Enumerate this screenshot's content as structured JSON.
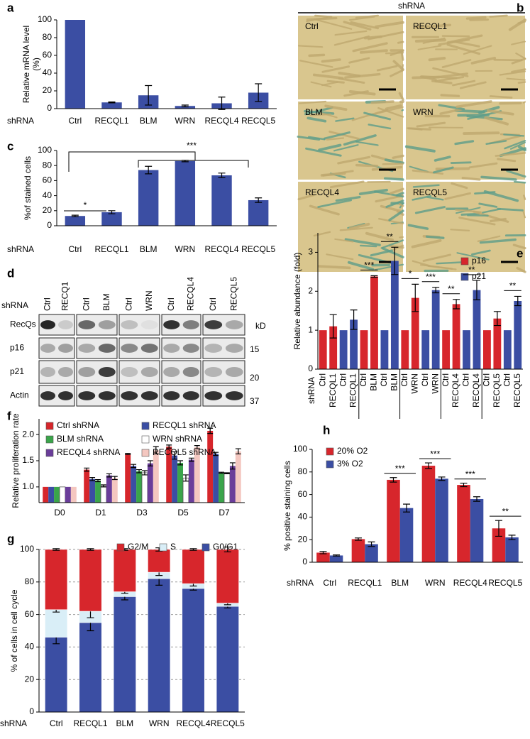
{
  "figure_b": {
    "panel_label": "b",
    "header": "shRNA",
    "images": [
      "Ctrl",
      "RECQL1",
      "BLM",
      "WRN",
      "RECQL4",
      "RECQL5"
    ]
  },
  "figure_d": {
    "panel_label": "d",
    "row_title": "shRNA",
    "lanes": [
      "Ctrl",
      "RECQ1",
      "Ctrl",
      "BLM",
      "Ctrl",
      "WRN",
      "Ctrl",
      "RECQL4",
      "Ctrl",
      "RECQL5"
    ],
    "rows": [
      "RecQs",
      "p16",
      "p21",
      "Actin"
    ],
    "size_header": "kD",
    "sizes": [
      15,
      20,
      37
    ]
  },
  "chart_data": [
    {
      "type": "bar",
      "panel_label": "a",
      "y_label": [
        "Relative mRNA level",
        "(%)"
      ],
      "row_title": "shRNA",
      "categories": [
        "Ctrl",
        "RECQL1",
        "BLM",
        "WRN",
        "RECQL4",
        "RECQL5"
      ],
      "values": [
        100,
        7,
        15,
        3,
        6,
        18
      ],
      "errors": [
        0,
        0.5,
        11,
        1,
        7,
        10
      ],
      "color": "#3b4ea3",
      "ylim": [
        0,
        100
      ],
      "yticks": [
        0,
        20,
        40,
        60,
        80,
        100
      ]
    },
    {
      "type": "bar",
      "panel_label": "c",
      "y_label": "%of stained cells",
      "row_title": "shRNA",
      "categories": [
        "Ctrl",
        "RECQL1",
        "BLM",
        "WRN",
        "RECQL4",
        "RECQL5"
      ],
      "values": [
        13,
        18,
        74,
        86,
        67,
        34
      ],
      "errors": [
        1,
        2,
        5,
        1,
        3,
        3
      ],
      "color": "#3b4ea3",
      "annotations": [
        "***",
        "*"
      ],
      "ylim": [
        0,
        100
      ],
      "yticks": [
        0,
        20,
        40,
        60,
        80,
        100
      ]
    },
    {
      "type": "bar",
      "panel_label": "e",
      "y_label": "Relative abundance (fold)",
      "row_title": "shRNA",
      "categories": [
        "Ctrl",
        "RECQL1",
        "Ctrl",
        "RECQL1",
        "Ctrl",
        "BLM",
        "Ctrl",
        "BLM",
        "Ctrl",
        "WRN",
        "Ctrl",
        "WRN",
        "Ctrl",
        "RECQL4",
        "Ctrl",
        "RECQL4",
        "Ctrl",
        "RECQL5",
        "Ctrl",
        "RECQL5"
      ],
      "series": [
        {
          "name": "p16",
          "color": "#d7262c",
          "values": [
            1,
            1.1,
            null,
            null,
            1,
            2.38,
            null,
            null,
            1,
            1.83,
            null,
            null,
            1,
            1.67,
            null,
            null,
            1,
            1.3,
            null,
            null
          ],
          "errors": [
            null,
            0.3,
            null,
            null,
            null,
            0.02,
            null,
            null,
            null,
            0.35,
            null,
            null,
            null,
            0.12,
            null,
            null,
            null,
            0.18,
            null,
            null
          ]
        },
        {
          "name": "p21",
          "color": "#3b4ea3",
          "values": [
            null,
            null,
            1,
            1.27,
            null,
            null,
            1,
            2.78,
            null,
            null,
            1,
            2.03,
            null,
            null,
            1,
            2.03,
            null,
            null,
            1,
            1.75
          ],
          "errors": [
            null,
            null,
            null,
            0.25,
            null,
            null,
            null,
            0.35,
            null,
            null,
            null,
            0.07,
            null,
            null,
            null,
            0.25,
            null,
            null,
            null,
            0.12
          ]
        }
      ],
      "annotations": [
        "***",
        "**",
        "*",
        "***",
        "**",
        "**",
        "**"
      ],
      "ylim": [
        0,
        3.5
      ],
      "yticks": [
        0,
        1,
        2,
        3
      ]
    },
    {
      "type": "bar",
      "panel_label": "f",
      "y_label": "Relative proliferation rate",
      "categories": [
        "D0",
        "D1",
        "D3",
        "D5",
        "D7"
      ],
      "series": [
        {
          "name": "Ctrl shRNA",
          "color": "#d6262b",
          "values": [
            1,
            1.33,
            1.63,
            1.77,
            2.07
          ],
          "errors": [
            0,
            0.03,
            0.01,
            0.03,
            0.05
          ]
        },
        {
          "name": "RECQL1 shRNA",
          "color": "#3b4ea3",
          "values": [
            1,
            1.15,
            1.4,
            1.6,
            1.63
          ],
          "errors": [
            0,
            0.03,
            0.03,
            0.07,
            0.03
          ]
        },
        {
          "name": "BLM shRNA",
          "color": "#3aa54a",
          "values": [
            1,
            1.12,
            1.3,
            1.46,
            1.27
          ],
          "errors": [
            0,
            0.02,
            0.03,
            0.04,
            0.01
          ]
        },
        {
          "name": "WRN shRNA",
          "color": "#ffffff",
          "values": [
            1,
            1.02,
            1.27,
            1.17,
            1.26
          ],
          "errors": [
            0,
            0.02,
            0.04,
            0.06,
            0.01
          ]
        },
        {
          "name": "RECQL4 shRNA",
          "color": "#6a3d9a",
          "values": [
            1,
            1.22,
            1.45,
            1.52,
            1.4
          ],
          "errors": [
            0,
            0.03,
            0.05,
            0.03,
            0.06
          ]
        },
        {
          "name": "RECQL5 shRNA",
          "color": "#f4c7c0",
          "values": [
            1,
            1.17,
            1.7,
            1.76,
            1.68
          ],
          "errors": [
            0,
            0.03,
            0.07,
            0.03,
            0.05
          ]
        }
      ],
      "ylim": [
        0.7,
        2.3
      ],
      "yticks": [
        {
          "value": 1,
          "label": "1.0"
        },
        1.5,
        {
          "value": 2,
          "label": "2.0"
        }
      ]
    },
    {
      "type": "stacked_bar",
      "panel_label": "g",
      "y_label": "% of cells in cell cycle",
      "row_title": "shRNA",
      "categories": [
        "Ctrl",
        "RECQL1",
        "BLM",
        "WRN",
        "RECQL4",
        "RECQL5"
      ],
      "series": [
        {
          "name": "G2/M",
          "color": "#d7262c",
          "values": [
            37,
            38,
            26,
            14,
            21,
            33
          ],
          "errors": [
            0.5,
            0.5,
            0.5,
            1,
            0.5,
            1.5
          ]
        },
        {
          "name": "S",
          "color": "#d9eef7",
          "values": [
            17,
            7,
            3,
            4,
            3,
            2
          ],
          "errors": [
            1.5,
            4,
            1,
            2,
            1.5,
            1
          ]
        },
        {
          "name": "G0/G1",
          "color": "#3b4ea3",
          "values": [
            46,
            55,
            71,
            82,
            76,
            65
          ],
          "errors": [
            4,
            5,
            2,
            4,
            1,
            1
          ]
        }
      ],
      "grid": true,
      "ylim": [
        0,
        100
      ],
      "yticks": [
        0,
        20,
        40,
        60,
        80,
        100
      ]
    },
    {
      "type": "bar",
      "panel_label": "h",
      "y_label": "% positive staining cells",
      "row_title": "shRNA",
      "categories": [
        "Ctrl",
        "RECQL1",
        "BLM",
        "WRN",
        "RECQL4",
        "RECQL5"
      ],
      "series": [
        {
          "name": "20% O2",
          "color": "#d7262c",
          "values": [
            8.5,
            20.5,
            73,
            85.5,
            68.5,
            30
          ],
          "errors": [
            1,
            1,
            2,
            2.5,
            1.5,
            7
          ]
        },
        {
          "name": "3% O2",
          "color": "#3b4ea3",
          "values": [
            6,
            16,
            48,
            74,
            56,
            22
          ],
          "errors": [
            0.5,
            2,
            3.5,
            1.5,
            2,
            2
          ]
        }
      ],
      "annotations": [
        "***",
        "***",
        "***",
        "**"
      ],
      "ylim": [
        0,
        100
      ],
      "yticks": [
        0,
        20,
        40,
        60,
        80,
        100
      ]
    }
  ]
}
